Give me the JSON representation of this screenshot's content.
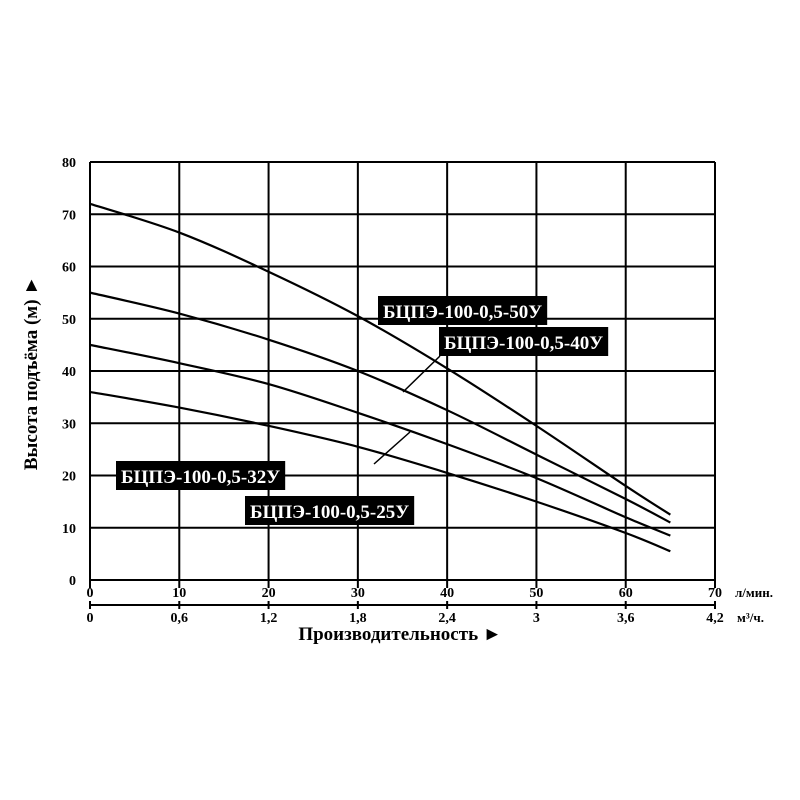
{
  "chart_data": {
    "type": "line",
    "xlabel": "Производительность ►",
    "ylabel": "Высота подъёма (м) ►",
    "x_unit_primary": "л/мин.",
    "x_unit_secondary": "м³/ч.",
    "xlim": [
      0,
      70
    ],
    "ylim": [
      0,
      80
    ],
    "x_ticks": [
      "0",
      "10",
      "20",
      "30",
      "40",
      "50",
      "60",
      "70"
    ],
    "x_ticks_secondary": [
      "0",
      "0,6",
      "1,2",
      "1,8",
      "2,4",
      "3",
      "3,6",
      "4,2"
    ],
    "y_ticks": [
      "0",
      "10",
      "20",
      "30",
      "40",
      "50",
      "60",
      "70",
      "80"
    ],
    "grid": true,
    "series": [
      {
        "name": "БЦПЭ-100-0,5-50У",
        "x": [
          0,
          10,
          20,
          30,
          40,
          50,
          60,
          65
        ],
        "y": [
          72,
          66.5,
          59,
          50.5,
          40.5,
          29.5,
          18,
          12.5
        ]
      },
      {
        "name": "БЦПЭ-100-0,5-40У",
        "x": [
          0,
          10,
          20,
          30,
          40,
          50,
          60,
          65
        ],
        "y": [
          55,
          51,
          46,
          40,
          32.5,
          24,
          15.5,
          11
        ]
      },
      {
        "name": "БЦПЭ-100-0,5-32У",
        "x": [
          0,
          10,
          20,
          30,
          40,
          50,
          60,
          65
        ],
        "y": [
          45,
          41.5,
          37.5,
          32,
          26,
          19.5,
          12,
          8.5
        ]
      },
      {
        "name": "БЦПЭ-100-0,5-25У",
        "x": [
          0,
          10,
          20,
          30,
          40,
          50,
          60,
          65
        ],
        "y": [
          36,
          33,
          29.5,
          25.5,
          20.5,
          15,
          9,
          5.5
        ]
      }
    ]
  }
}
